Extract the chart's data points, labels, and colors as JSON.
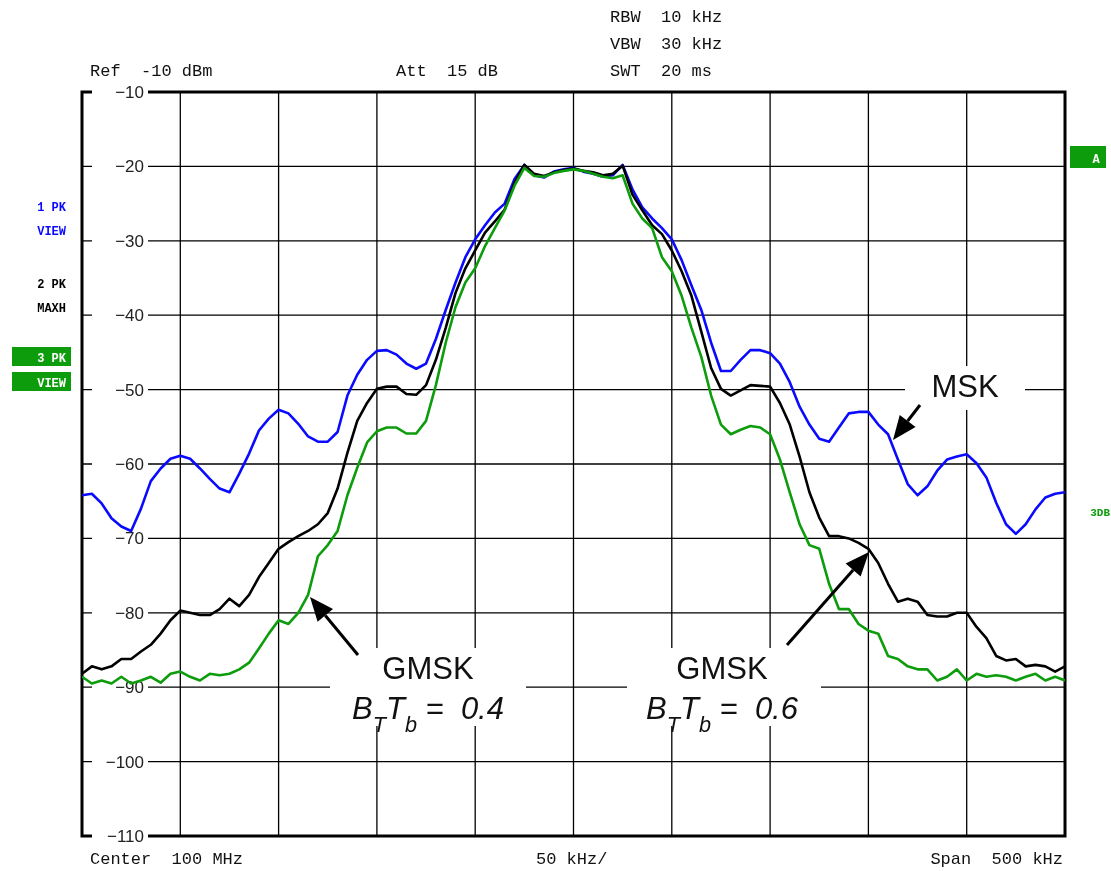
{
  "chart_data": {
    "type": "line",
    "categories": [
      null,
      null,
      null,
      null,
      null,
      null,
      null,
      null,
      null,
      null,
      null,
      null,
      null,
      null,
      null,
      null,
      null,
      null,
      null,
      null,
      null,
      null,
      null,
      null,
      null,
      null,
      null,
      null,
      null,
      null,
      null,
      null,
      null,
      null,
      null,
      null,
      null,
      null,
      null,
      null,
      null,
      null,
      null,
      null,
      null,
      null,
      null,
      null,
      null,
      null,
      null,
      null,
      null,
      null,
      null,
      null,
      null,
      null,
      null,
      null,
      null,
      null,
      null,
      null,
      null,
      null,
      null,
      null,
      null,
      null,
      null,
      null,
      null,
      null,
      null,
      null,
      null,
      null,
      null,
      null,
      null,
      null,
      null,
      null,
      null,
      null,
      null,
      null,
      null,
      null,
      null,
      null,
      null,
      null,
      null,
      null,
      null,
      null,
      null,
      null,
      null
    ],
    "series": [
      {
        "color": "#0a0aff",
        "values": [
          -64.2,
          -64,
          -65.3,
          -67.3,
          -68.4,
          -69,
          -66,
          -62.3,
          -60.6,
          -59.3,
          -58.9,
          -59.3,
          -60.6,
          -62,
          -63.3,
          -63.8,
          -61.3,
          -58.6,
          -55.5,
          -53.9,
          -52.7,
          -53.2,
          -54.6,
          -56.3,
          -57,
          -57,
          -55.7,
          -50.8,
          -48,
          -46,
          -44.8,
          -44.7,
          -45.3,
          -46.5,
          -47.2,
          -46.5,
          -43.2,
          -39.3,
          -35.6,
          -32.2,
          -29.8,
          -27.9,
          -26.2,
          -25,
          -21.7,
          -19.8,
          -21.2,
          -21.5,
          -20.7,
          -20.4,
          -20.2,
          -20.7,
          -21,
          -21.4,
          -21.2,
          -19.8,
          -23.1,
          -25.5,
          -27,
          -28.3,
          -29.8,
          -32.6,
          -36,
          -39.3,
          -43.7,
          -47.5,
          -47.5,
          -46,
          -44.7,
          -44.7,
          -45.1,
          -46.5,
          -49,
          -52.3,
          -54.7,
          -56.6,
          -57,
          -55.1,
          -53.2,
          -53,
          -53,
          -54.7,
          -56,
          -59.4,
          -62.7,
          -64.2,
          -63,
          -60.9,
          -59.4,
          -59,
          -58.7,
          -59.9,
          -61.8,
          -65.2,
          -68.1,
          -69.4,
          -68.1,
          -66.1,
          -64.5,
          -64,
          -63.8
        ]
      },
      {
        "color": "#000000",
        "values": [
          -88.2,
          -87.2,
          -87.6,
          -87.2,
          -86.2,
          -86.2,
          -85.2,
          -84.3,
          -82.8,
          -81,
          -79.7,
          -80,
          -80.3,
          -80.3,
          -79.5,
          -78.1,
          -79.1,
          -77.6,
          -75.2,
          -73.3,
          -71.4,
          -70.5,
          -69.7,
          -69,
          -68.1,
          -66.6,
          -63.3,
          -58.5,
          -54.2,
          -51.8,
          -49.9,
          -49.6,
          -49.6,
          -50.6,
          -50.7,
          -49.4,
          -46,
          -41.7,
          -37,
          -33.7,
          -31.3,
          -28.9,
          -27.4,
          -25.8,
          -22.2,
          -19.8,
          -21,
          -21.3,
          -20.8,
          -20.5,
          -20.3,
          -20.6,
          -20.8,
          -21.2,
          -21,
          -19.9,
          -23.8,
          -25.9,
          -27.9,
          -29.1,
          -31.3,
          -34.1,
          -37.4,
          -42.2,
          -47.1,
          -49.9,
          -50.8,
          -50.1,
          -49.4,
          -49.5,
          -49.6,
          -51.8,
          -54.7,
          -59,
          -63.8,
          -67.2,
          -69.7,
          -69.7,
          -70,
          -70.6,
          -71.4,
          -73.3,
          -76.1,
          -78.5,
          -78.1,
          -78.5,
          -80.3,
          -80.5,
          -80.5,
          -80,
          -80,
          -81.9,
          -83.4,
          -85.8,
          -86.4,
          -86.2,
          -87.2,
          -87,
          -87.2,
          -87.9,
          -87.2
        ]
      },
      {
        "color": "#0c9c0c",
        "values": [
          -88.6,
          -89.5,
          -89.1,
          -89.5,
          -88.6,
          -89.5,
          -89.1,
          -88.6,
          -89.4,
          -88.2,
          -87.9,
          -88.6,
          -89.1,
          -88.2,
          -88.4,
          -88.2,
          -87.6,
          -86.7,
          -84.8,
          -82.8,
          -81,
          -81.5,
          -80,
          -77.6,
          -72.4,
          -70.9,
          -69,
          -64.2,
          -60.5,
          -57.1,
          -55.6,
          -55.1,
          -55.1,
          -55.9,
          -55.9,
          -54.2,
          -49.4,
          -43.7,
          -38.9,
          -35.6,
          -33.7,
          -30.7,
          -28.3,
          -25.9,
          -22.6,
          -20.2,
          -21.3,
          -21.4,
          -20.9,
          -20.6,
          -20.4,
          -20.6,
          -21,
          -21.4,
          -21.6,
          -21.2,
          -25,
          -27,
          -28.3,
          -32.2,
          -34.1,
          -37.4,
          -41.7,
          -45.6,
          -50.8,
          -54.7,
          -56,
          -55.4,
          -54.9,
          -55.1,
          -56,
          -59.4,
          -63.8,
          -68.1,
          -70.9,
          -71.4,
          -76.1,
          -79.5,
          -79.5,
          -81.5,
          -82.4,
          -82.8,
          -85.8,
          -86.2,
          -87.2,
          -87.6,
          -87.6,
          -89.1,
          -88.6,
          -87.6,
          -89.1,
          -88.2,
          -88.6,
          -88.4,
          -88.6,
          -89.1,
          -88.6,
          -88.2,
          -89.1,
          -88.6,
          -89.1
        ]
      }
    ],
    "ylim": [
      -110,
      -10
    ],
    "yticks": [
      -10,
      -20,
      -30,
      -40,
      -50,
      -60,
      -70,
      -80,
      -90,
      -100,
      -110
    ],
    "grid": true,
    "line_style": "solid",
    "tick_labels": "y",
    "annotations": [
      "Ref  -10 dBm",
      "Att  15 dB",
      "RBW  10 kHz",
      "VBW  30 kHz",
      "SWT  20 ms",
      "1 PK",
      "VIEW",
      "2 PK",
      "MAXH",
      "3 PK",
      "VIEW",
      "A",
      "3DB",
      "Center  100 MHz",
      "50 kHz/",
      "Span  500 kHz",
      "MSK",
      "GMSK",
      "B$_{T}$T$_{b}$ =  0.4",
      "GMSK",
      "B$_{T}$T$_{b}$ =  0.6"
    ]
  }
}
